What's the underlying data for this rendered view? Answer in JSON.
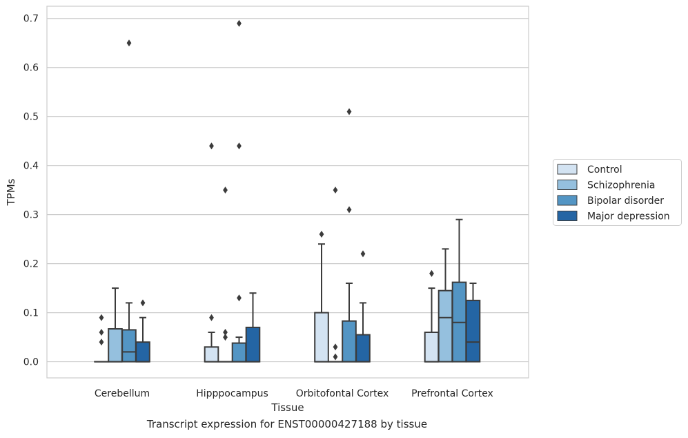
{
  "caption": "Transcript expression for ENST00000427188 by tissue",
  "chart_data": {
    "type": "boxplot",
    "xlabel": "Tissue",
    "ylabel": "TPMs",
    "ylim": [
      -0.033,
      0.725
    ],
    "yticks": [
      0.0,
      0.1,
      0.2,
      0.3,
      0.4,
      0.5,
      0.6,
      0.7
    ],
    "ytick_labels": [
      "0.0",
      "0.1",
      "0.2",
      "0.3",
      "0.4",
      "0.5",
      "0.6",
      "0.7"
    ],
    "grid": "horizontal",
    "legend_position": "right",
    "categories": [
      "Cerebellum",
      "Hipppocampus",
      "Orbitofontal Cortex",
      "Prefrontal Cortex"
    ],
    "series": [
      {
        "name": "Control",
        "color": "#d3e3f2",
        "boxes": [
          {
            "q1": 0,
            "median": 0,
            "q3": 0,
            "whislo": 0,
            "whishi": 0,
            "fliers": [
              0.04,
              0.06,
              0.09
            ]
          },
          {
            "q1": 0,
            "median": 0,
            "q3": 0.03,
            "whislo": 0,
            "whishi": 0.06,
            "fliers": [
              0.09,
              0.44
            ]
          },
          {
            "q1": 0,
            "median": 0,
            "q3": 0.1,
            "whislo": 0,
            "whishi": 0.24,
            "fliers": [
              0.26
            ]
          },
          {
            "q1": 0,
            "median": 0,
            "q3": 0.06,
            "whislo": 0,
            "whishi": 0.15,
            "fliers": [
              0.18
            ]
          }
        ]
      },
      {
        "name": "Schizophrenia",
        "color": "#95c0de",
        "boxes": [
          {
            "q1": 0,
            "median": 0,
            "q3": 0.067,
            "whislo": 0,
            "whishi": 0.15,
            "fliers": []
          },
          {
            "q1": 0,
            "median": 0,
            "q3": 0,
            "whislo": 0,
            "whishi": 0,
            "fliers": [
              0.05,
              0.06,
              0.35
            ]
          },
          {
            "q1": 0,
            "median": 0,
            "q3": 0,
            "whislo": 0,
            "whishi": 0,
            "fliers": [
              0.01,
              0.03,
              0.35
            ]
          },
          {
            "q1": 0,
            "median": 0.09,
            "q3": 0.145,
            "whislo": 0,
            "whishi": 0.23,
            "fliers": []
          }
        ]
      },
      {
        "name": "Bipolar disorder",
        "color": "#5395c4",
        "boxes": [
          {
            "q1": 0,
            "median": 0.02,
            "q3": 0.065,
            "whislo": 0,
            "whishi": 0.12,
            "fliers": [
              0.65
            ]
          },
          {
            "q1": 0,
            "median": 0,
            "q3": 0.038,
            "whislo": 0,
            "whishi": 0.05,
            "fliers": [
              0.13,
              0.44,
              0.69
            ]
          },
          {
            "q1": 0,
            "median": 0,
            "q3": 0.083,
            "whislo": 0,
            "whishi": 0.16,
            "fliers": [
              0.31,
              0.51
            ]
          },
          {
            "q1": 0,
            "median": 0.08,
            "q3": 0.162,
            "whislo": 0,
            "whishi": 0.29,
            "fliers": []
          }
        ]
      },
      {
        "name": "Major depression",
        "color": "#2465a4",
        "boxes": [
          {
            "q1": 0,
            "median": 0,
            "q3": 0.04,
            "whislo": 0,
            "whishi": 0.09,
            "fliers": [
              0.12
            ]
          },
          {
            "q1": 0,
            "median": 0,
            "q3": 0.07,
            "whislo": 0,
            "whishi": 0.14,
            "fliers": []
          },
          {
            "q1": 0,
            "median": 0,
            "q3": 0.055,
            "whislo": 0,
            "whishi": 0.12,
            "fliers": [
              0.22
            ]
          },
          {
            "q1": 0,
            "median": 0.04,
            "q3": 0.125,
            "whislo": 0,
            "whishi": 0.16,
            "fliers": []
          }
        ]
      }
    ]
  }
}
